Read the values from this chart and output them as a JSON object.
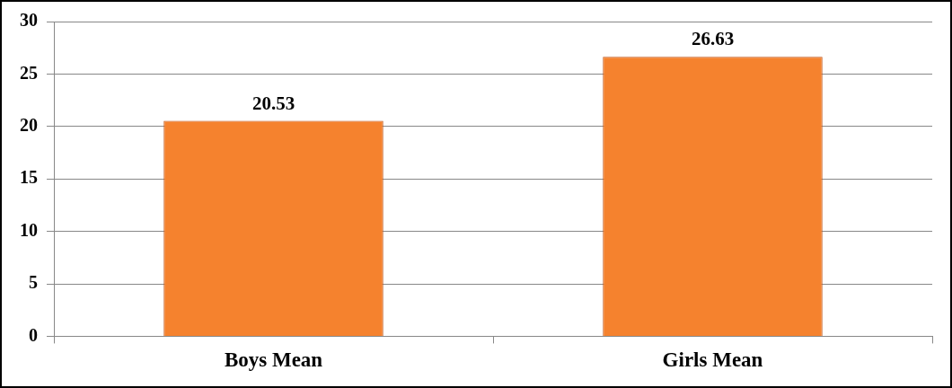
{
  "chart_data": {
    "type": "bar",
    "categories": [
      "Boys Mean",
      "Girls Mean"
    ],
    "values": [
      20.53,
      26.63
    ],
    "color": "#f5822e",
    "ylim": [
      0,
      30
    ],
    "yticks": [
      0,
      5,
      10,
      15,
      20,
      25,
      30
    ],
    "grid": "y",
    "data_labels": true
  }
}
